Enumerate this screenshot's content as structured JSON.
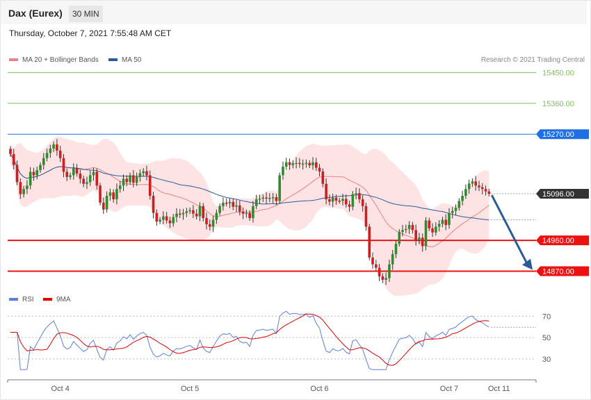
{
  "header": {
    "instrument": "Dax (Eurex)",
    "timeframe": "30 MIN",
    "datetime": "Thursday, October 7, 2021 7:55:48 AM CET"
  },
  "legend": {
    "main": [
      {
        "label": "MA 20 + Bollinger Bands",
        "color": "#f08080"
      },
      {
        "label": "MA 50",
        "color": "#2a5a9a"
      }
    ],
    "rsi": [
      {
        "label": "RSI",
        "color": "#5b7fdc"
      },
      {
        "label": "9MA",
        "color": "#e00000"
      }
    ]
  },
  "credit": "Research © 2021 Trading Central",
  "chart_data": [
    {
      "type": "candlestick",
      "panel": "price",
      "ylim": [
        14790,
        15540
      ],
      "levels": [
        {
          "value": 15450,
          "label": "15450.00",
          "kind": "target",
          "color": "#7cc15a"
        },
        {
          "value": 15360,
          "label": "15360.00",
          "kind": "target",
          "color": "#7cc15a"
        },
        {
          "value": 15270,
          "label": "15270.00",
          "kind": "pivot",
          "color": "#1f6fe6"
        },
        {
          "value": 15096,
          "label": "15096.00",
          "kind": "last",
          "color": "#333333"
        },
        {
          "value": 14960,
          "label": "14960.00",
          "kind": "support",
          "color": "#ee1111"
        },
        {
          "value": 14870,
          "label": "14870.00",
          "kind": "support",
          "color": "#ee1111"
        }
      ],
      "x_ticks": [
        "Oct 4",
        "Oct 5",
        "Oct 6",
        "Oct 7",
        "Oct 11"
      ],
      "close": [
        15212,
        15180,
        15130,
        15095,
        15110,
        15120,
        15160,
        15150,
        15165,
        15180,
        15200,
        15215,
        15228,
        15240,
        15222,
        15200,
        15160,
        15145,
        15150,
        15170,
        15155,
        15140,
        15125,
        15130,
        15150,
        15160,
        15120,
        15070,
        15050,
        15090,
        15100,
        15080,
        15110,
        15120,
        15140,
        15130,
        15150,
        15128,
        15145,
        15156,
        15162,
        15150,
        15090,
        15040,
        15015,
        15020,
        15030,
        15018,
        15010,
        15028,
        15038,
        15036,
        15040,
        15045,
        15048,
        15038,
        15030,
        15060,
        15025,
        15007,
        15000,
        15020,
        15040,
        15060,
        15070,
        15068,
        15072,
        15058,
        15062,
        15044,
        15038,
        15040,
        15025,
        15060,
        15080,
        15082,
        15085,
        15082,
        15084,
        15086,
        15075,
        15150,
        15175,
        15188,
        15180,
        15185,
        15186,
        15183,
        15184,
        15186,
        15179,
        15188,
        15172,
        15161,
        15125,
        15080,
        15073,
        15084,
        15076,
        15075,
        15081,
        15065,
        15058,
        15095,
        15098,
        15080,
        15060,
        15000,
        14910,
        14890,
        14880,
        14855,
        14845,
        14850,
        14890,
        14920,
        14950,
        14985,
        14990,
        14993,
        15005,
        14990,
        14960,
        14968,
        14943,
        15018,
        14995,
        14983,
        15000,
        15008,
        15020,
        15005,
        15040,
        15046,
        15055,
        15075,
        15090,
        15110,
        15126,
        15132,
        15120,
        15115,
        15110,
        15103,
        15096
      ],
      "rsi": {
        "ylim": [
          15,
          80
        ],
        "ticks": [
          70,
          50,
          30
        ]
      }
    }
  ]
}
